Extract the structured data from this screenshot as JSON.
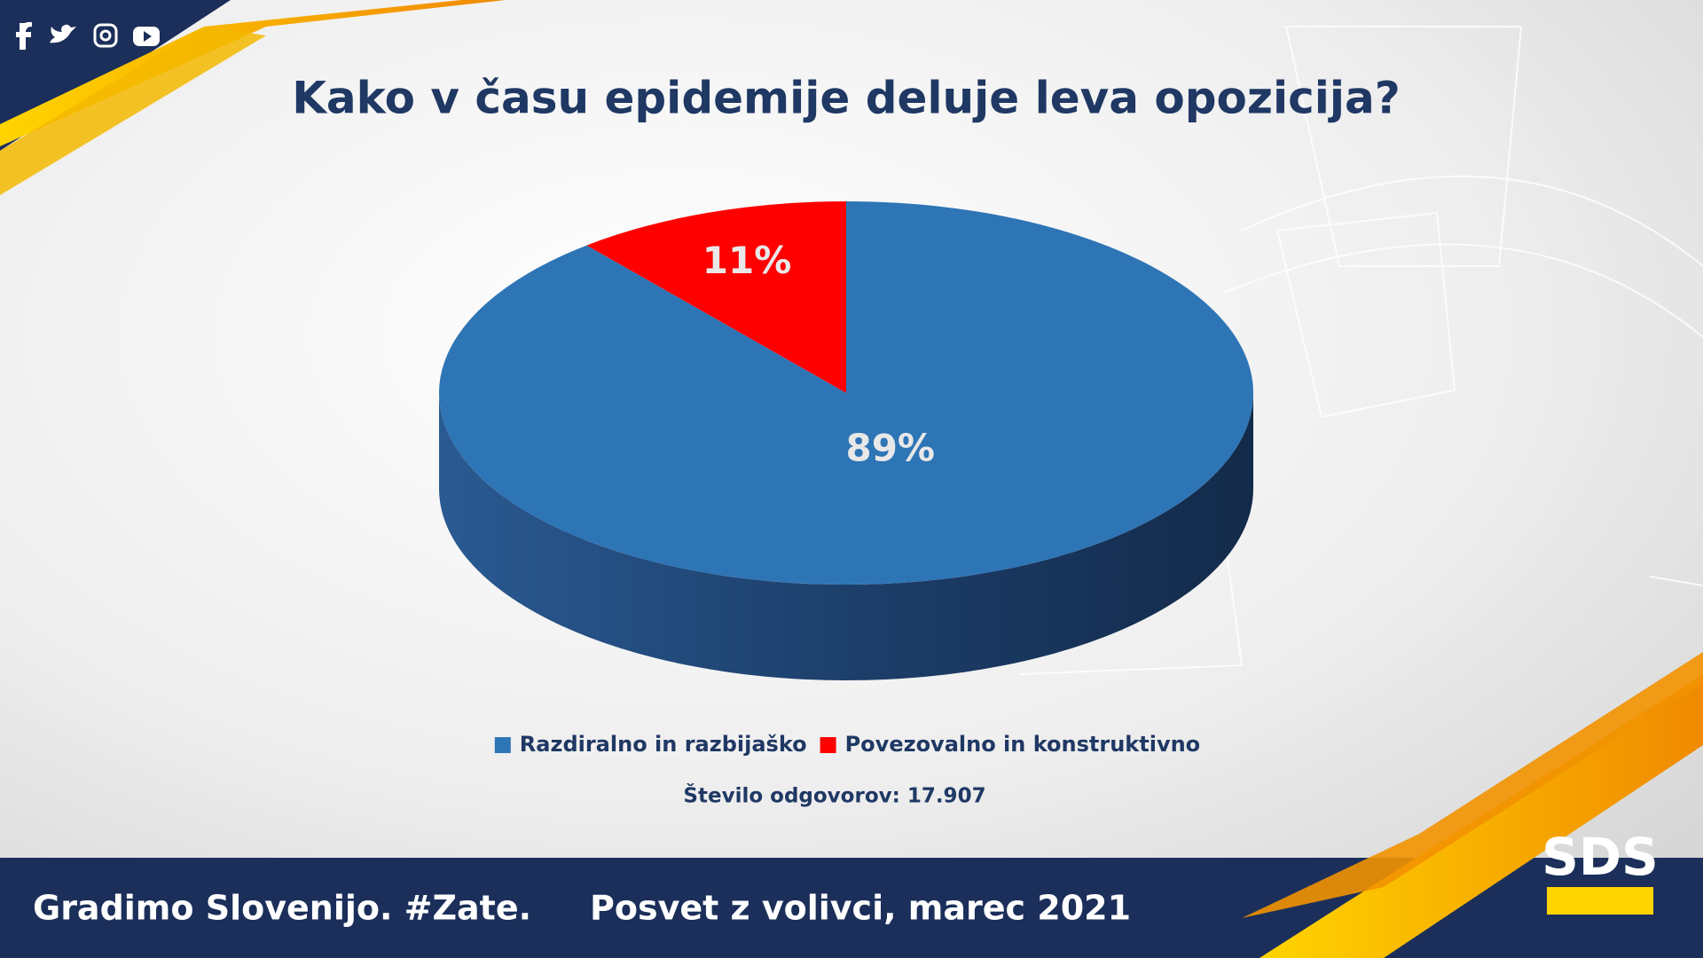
{
  "chart_data": {
    "type": "pie",
    "title": "Kako v času epidemije deluje leva opozicija?",
    "categories": [
      "Razdiralno in razbijaško",
      "Povezovalno in konstruktivno"
    ],
    "values": [
      89,
      11
    ],
    "value_labels": [
      "89%",
      "11%"
    ],
    "colors": [
      "#2e75b6",
      "#ff0000"
    ],
    "legend": "bottom",
    "note": "Število odgovorov: 17.907"
  },
  "footer": {
    "left": "Gradimo Slovenijo. #Zate.",
    "right": "Posvet z volivci, marec 2021"
  },
  "logo": "SDS"
}
